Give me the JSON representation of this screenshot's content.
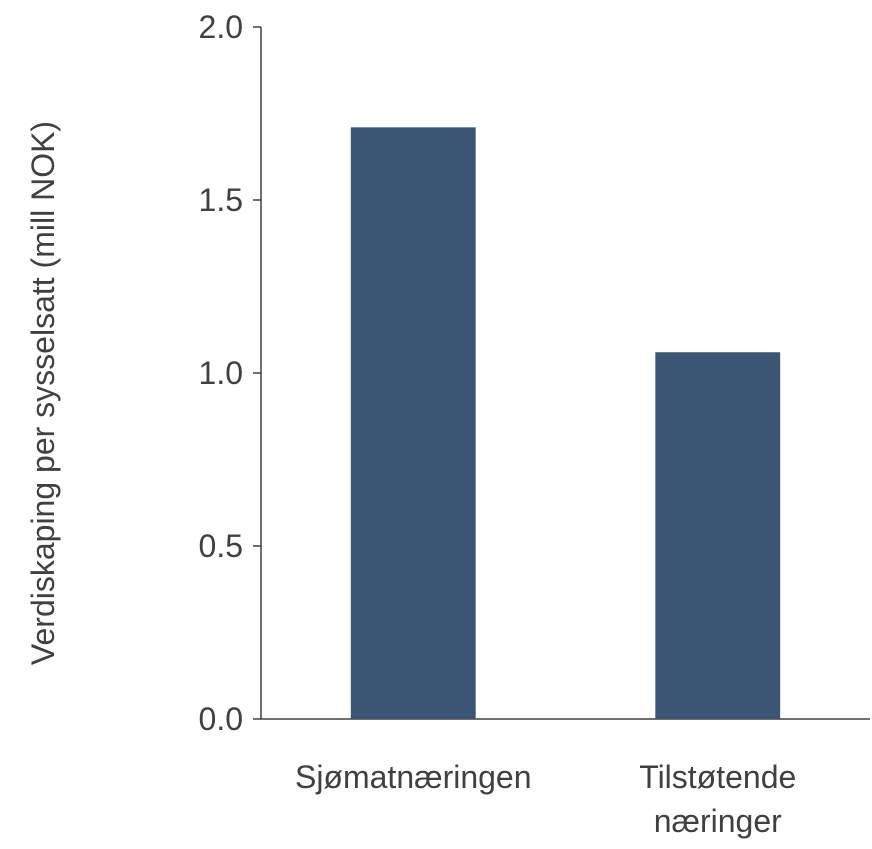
{
  "chart_data": {
    "type": "bar",
    "categories": [
      [
        "Sjømatnæringen"
      ],
      [
        "Tilstøtende",
        "næringer"
      ]
    ],
    "values": [
      1.71,
      1.06
    ],
    "title": "",
    "xlabel": "",
    "ylabel": "Verdiskaping per sysselsatt (mill NOK)",
    "ylim": [
      0,
      2.0
    ],
    "yticks": [
      "0.0",
      "0.5",
      "1.0",
      "1.5",
      "2.0"
    ],
    "bar_color": "#3b5674",
    "grid": false,
    "legend": "none"
  }
}
